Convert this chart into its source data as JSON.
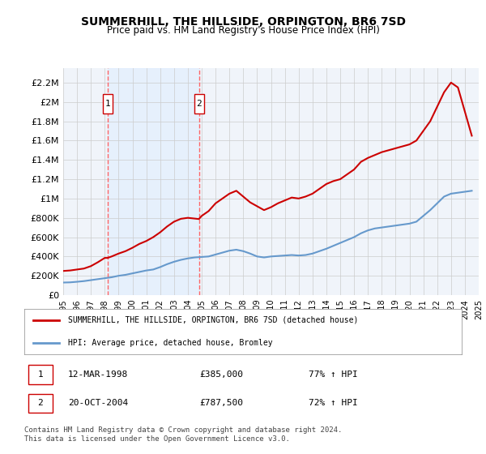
{
  "title": "SUMMERHILL, THE HILLSIDE, ORPINGTON, BR6 7SD",
  "subtitle": "Price paid vs. HM Land Registry's House Price Index (HPI)",
  "legend_line1": "SUMMERHILL, THE HILLSIDE, ORPINGTON, BR6 7SD (detached house)",
  "legend_line2": "HPI: Average price, detached house, Bromley",
  "annotation1": {
    "label": "1",
    "date": "12-MAR-1998",
    "price": "£385,000",
    "hpi": "77% ↑ HPI",
    "year": 1998.2
  },
  "annotation2": {
    "label": "2",
    "date": "20-OCT-2004",
    "price": "£787,500",
    "hpi": "72% ↑ HPI",
    "year": 2004.8
  },
  "footnote": "Contains HM Land Registry data © Crown copyright and database right 2024.\nThis data is licensed under the Open Government Licence v3.0.",
  "background_color": "#f0f4fa",
  "plot_background": "#f0f4fa",
  "red_color": "#cc0000",
  "blue_color": "#6699cc",
  "dashed_color": "#ff6666",
  "grid_color": "#cccccc",
  "red_line_data": {
    "years": [
      1995.0,
      1995.5,
      1996.0,
      1996.5,
      1997.0,
      1997.5,
      1998.0,
      1998.2,
      1998.5,
      1999.0,
      1999.5,
      2000.0,
      2000.5,
      2001.0,
      2001.5,
      2002.0,
      2002.5,
      2003.0,
      2003.5,
      2004.0,
      2004.8,
      2005.0,
      2005.5,
      2006.0,
      2006.5,
      2007.0,
      2007.5,
      2008.0,
      2008.5,
      2009.0,
      2009.5,
      2010.0,
      2010.5,
      2011.0,
      2011.5,
      2012.0,
      2012.5,
      2013.0,
      2013.5,
      2014.0,
      2014.5,
      2015.0,
      2015.5,
      2016.0,
      2016.5,
      2017.0,
      2017.5,
      2018.0,
      2018.5,
      2019.0,
      2019.5,
      2020.0,
      2020.5,
      2021.0,
      2021.5,
      2022.0,
      2022.5,
      2023.0,
      2023.5,
      2024.0,
      2024.5
    ],
    "values": [
      250000,
      255000,
      265000,
      275000,
      300000,
      340000,
      385000,
      385000,
      400000,
      430000,
      455000,
      490000,
      530000,
      560000,
      600000,
      650000,
      710000,
      760000,
      790000,
      800000,
      787500,
      820000,
      870000,
      950000,
      1000000,
      1050000,
      1080000,
      1020000,
      960000,
      920000,
      880000,
      910000,
      950000,
      980000,
      1010000,
      1000000,
      1020000,
      1050000,
      1100000,
      1150000,
      1180000,
      1200000,
      1250000,
      1300000,
      1380000,
      1420000,
      1450000,
      1480000,
      1500000,
      1520000,
      1540000,
      1560000,
      1600000,
      1700000,
      1800000,
      1950000,
      2100000,
      2200000,
      2150000,
      1900000,
      1650000
    ]
  },
  "blue_line_data": {
    "years": [
      1995.0,
      1995.5,
      1996.0,
      1996.5,
      1997.0,
      1997.5,
      1998.0,
      1998.5,
      1999.0,
      1999.5,
      2000.0,
      2000.5,
      2001.0,
      2001.5,
      2002.0,
      2002.5,
      2003.0,
      2003.5,
      2004.0,
      2004.5,
      2005.0,
      2005.5,
      2006.0,
      2006.5,
      2007.0,
      2007.5,
      2008.0,
      2008.5,
      2009.0,
      2009.5,
      2010.0,
      2010.5,
      2011.0,
      2011.5,
      2012.0,
      2012.5,
      2013.0,
      2013.5,
      2014.0,
      2014.5,
      2015.0,
      2015.5,
      2016.0,
      2016.5,
      2017.0,
      2017.5,
      2018.0,
      2018.5,
      2019.0,
      2019.5,
      2020.0,
      2020.5,
      2021.0,
      2021.5,
      2022.0,
      2022.5,
      2023.0,
      2023.5,
      2024.0,
      2024.5
    ],
    "values": [
      130000,
      132000,
      138000,
      145000,
      155000,
      165000,
      175000,
      185000,
      200000,
      210000,
      225000,
      240000,
      255000,
      265000,
      290000,
      320000,
      345000,
      365000,
      380000,
      390000,
      395000,
      400000,
      420000,
      440000,
      460000,
      470000,
      455000,
      430000,
      400000,
      390000,
      400000,
      405000,
      410000,
      415000,
      410000,
      415000,
      430000,
      455000,
      480000,
      510000,
      540000,
      570000,
      600000,
      640000,
      670000,
      690000,
      700000,
      710000,
      720000,
      730000,
      740000,
      760000,
      820000,
      880000,
      950000,
      1020000,
      1050000,
      1060000,
      1070000,
      1080000
    ]
  },
  "yticks": [
    0,
    200000,
    400000,
    600000,
    800000,
    1000000,
    1200000,
    1400000,
    1600000,
    1800000,
    2000000,
    2200000
  ],
  "ylabels": [
    "£0",
    "£200K",
    "£400K",
    "£600K",
    "£800K",
    "£1M",
    "£1.2M",
    "£1.4M",
    "£1.6M",
    "£1.8M",
    "£2M",
    "£2.2M"
  ],
  "xticks": [
    1995,
    1996,
    1997,
    1998,
    1999,
    2000,
    2001,
    2002,
    2003,
    2004,
    2005,
    2006,
    2007,
    2008,
    2009,
    2010,
    2011,
    2012,
    2013,
    2014,
    2015,
    2016,
    2017,
    2018,
    2019,
    2020,
    2021,
    2022,
    2023,
    2024,
    2025
  ],
  "xlim": [
    1995,
    2025
  ],
  "ylim": [
    0,
    2350000
  ]
}
